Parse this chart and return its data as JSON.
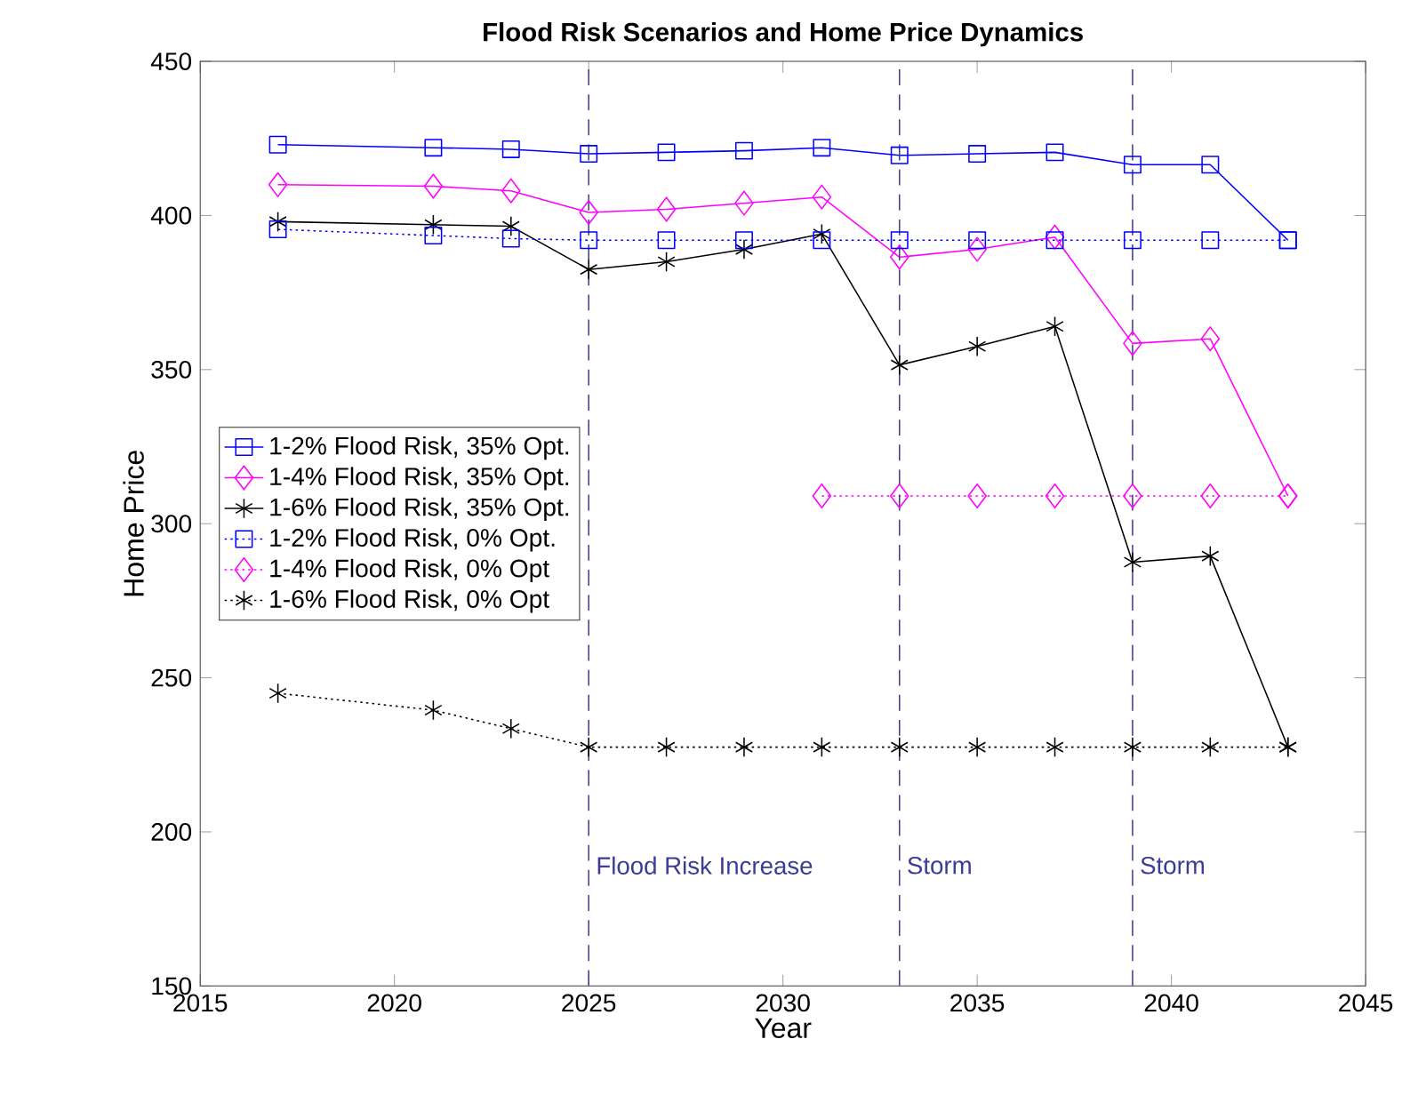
{
  "chart_data": {
    "type": "line",
    "title": "Flood Risk Scenarios and Home Price Dynamics",
    "xlabel": "Year",
    "ylabel": "Home Price",
    "x": [
      2017,
      2021,
      2023,
      2025,
      2027,
      2029,
      2031,
      2033,
      2035,
      2037,
      2039,
      2041,
      2043
    ],
    "series": [
      {
        "name": "1-2% Flood Risk, 35% Opt.",
        "color": "#0000ff",
        "marker": "square",
        "line_style": "solid",
        "values": [
          423,
          422,
          421.5,
          420,
          420.5,
          421,
          422,
          419.5,
          420,
          420.5,
          416.5,
          416.5,
          392
        ]
      },
      {
        "name": "1-4% Flood Risk, 35% Opt.",
        "color": "#ff00ff",
        "marker": "diamond",
        "line_style": "solid",
        "values": [
          410,
          409.5,
          408,
          401,
          402,
          404,
          406,
          386.5,
          389,
          393,
          358.5,
          360,
          309
        ]
      },
      {
        "name": "1-6% Flood Risk, 35% Opt.",
        "color": "#000000",
        "marker": "cross",
        "line_style": "solid",
        "values": [
          398,
          397,
          396.5,
          382.5,
          385,
          389,
          394,
          351.5,
          357.5,
          364,
          287.5,
          289.5,
          227.5
        ]
      },
      {
        "name": "1-2% Flood Risk, 0% Opt.",
        "color": "#0000ff",
        "marker": "square",
        "line_style": "dotted",
        "values": [
          395.5,
          393.5,
          392.5,
          392,
          392,
          392,
          392,
          392,
          392,
          392,
          392,
          392,
          392
        ]
      },
      {
        "name": "1-4% Flood Risk, 0% Opt",
        "color": "#ff00ff",
        "marker": "diamond",
        "line_style": "dotted",
        "values": [
          null,
          null,
          null,
          null,
          null,
          null,
          309,
          309,
          309,
          309,
          309,
          309,
          309
        ]
      },
      {
        "name": "1-6% Flood Risk, 0% Opt",
        "color": "#000000",
        "marker": "cross",
        "line_style": "dotted",
        "values": [
          245,
          239.5,
          233.5,
          227.5,
          227.5,
          227.5,
          227.5,
          227.5,
          227.5,
          227.5,
          227.5,
          227.5,
          227.5
        ]
      }
    ],
    "ref_lines": [
      {
        "axis": "x",
        "value": 2025,
        "label": "Flood Risk Increase",
        "color": "#3c3c96",
        "line_style": "dashed"
      },
      {
        "axis": "x",
        "value": 2033,
        "label": "Storm",
        "color": "#3c3c96",
        "line_style": "dashed"
      },
      {
        "axis": "x",
        "value": 2039,
        "label": "Storm",
        "color": "#3c3c96",
        "line_style": "dashed"
      }
    ],
    "xlim": [
      2015,
      2045
    ],
    "ylim": [
      150,
      450
    ],
    "xticks": [
      2015,
      2020,
      2025,
      2030,
      2035,
      2040,
      2045
    ],
    "yticks": [
      150,
      200,
      250,
      300,
      350,
      400,
      450
    ],
    "grid": false,
    "legend": "left"
  }
}
